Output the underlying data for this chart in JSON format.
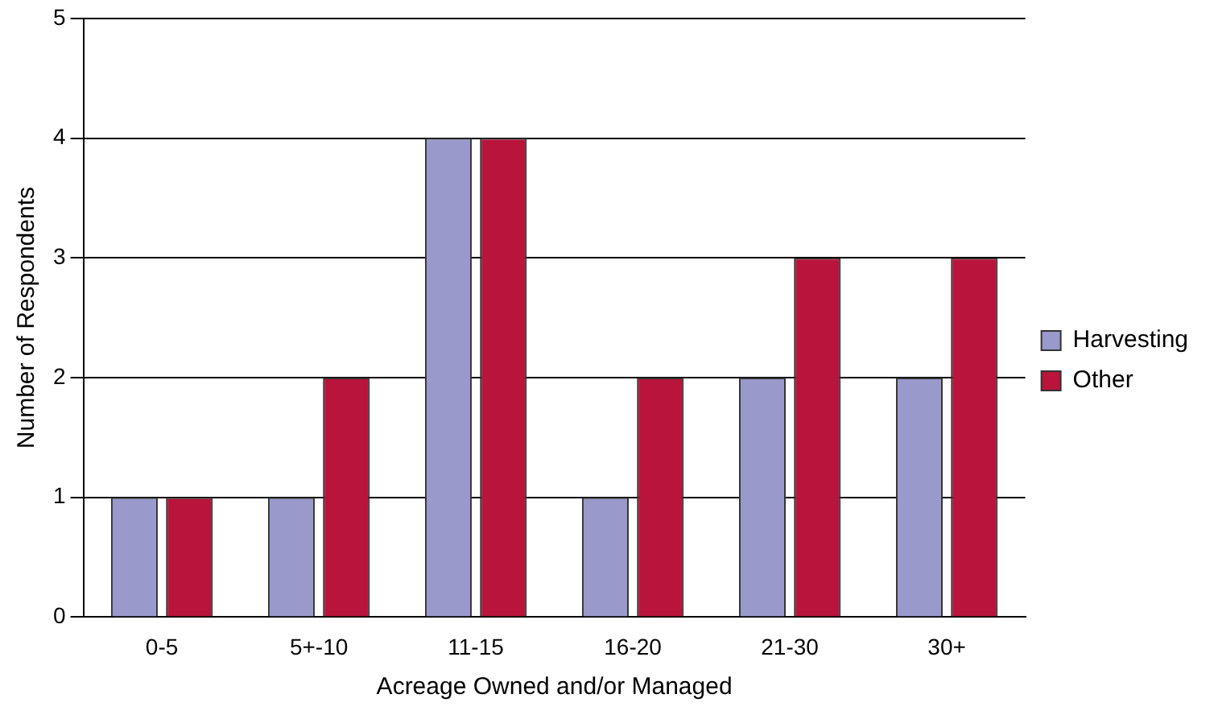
{
  "chart_data": {
    "type": "bar",
    "xlabel": "Acreage Owned and/or Managed",
    "ylabel": "Number of Respondents",
    "categories": [
      "0-5",
      "5+-10",
      "11-15",
      "16-20",
      "21-30",
      "30+"
    ],
    "series": [
      {
        "name": "Harvesting",
        "color": "#9999cc",
        "values": [
          1,
          1,
          4,
          1,
          2,
          2
        ]
      },
      {
        "name": "Other",
        "color": "#b8143c",
        "values": [
          1,
          2,
          4,
          2,
          3,
          3
        ]
      }
    ],
    "ylim": [
      0,
      5
    ],
    "yticks": [
      0,
      1,
      2,
      3,
      4,
      5
    ],
    "grid": "y",
    "legend": "right"
  }
}
